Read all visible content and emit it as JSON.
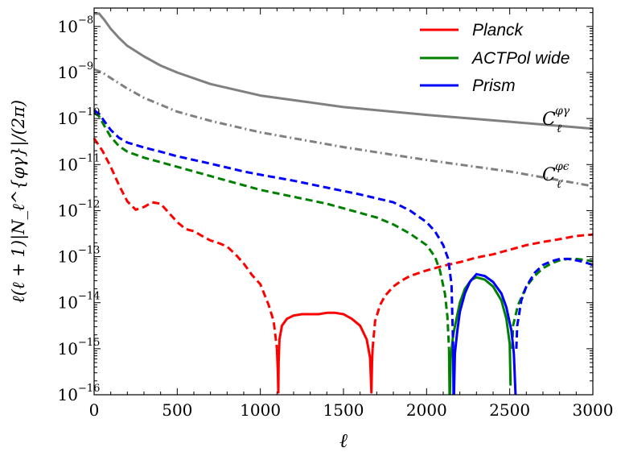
{
  "chart_data": {
    "type": "line",
    "yscale": "log",
    "xlabel": "ℓ",
    "ylabel": "ℓ(ℓ + 1)|N_ℓ^{φγ}|/(2π)",
    "xlim": [
      0,
      3000
    ],
    "ylim_exp": [
      -16,
      -7.6
    ],
    "xticks": [
      0,
      500,
      1000,
      1500,
      2000,
      2500,
      3000
    ],
    "xtick_labels": [
      "0",
      "500",
      "1000",
      "1500",
      "2000",
      "2500",
      "3000"
    ],
    "yticks_exp": [
      -16,
      -15,
      -14,
      -13,
      -12,
      -11,
      -10,
      -9,
      -8
    ],
    "ytick_labels": [
      "10",
      "10",
      "10",
      "10",
      "10",
      "10",
      "10",
      "10",
      "10"
    ],
    "ytick_exponents": [
      "−16",
      "−15",
      "−14",
      "−13",
      "−12",
      "−11",
      "−10",
      "−9",
      "−8"
    ],
    "legend": {
      "placement": "top-right",
      "entries": [
        {
          "label": "Planck",
          "color": "#ff0000"
        },
        {
          "label": "ACTPol wide",
          "color": "#008000"
        },
        {
          "label": "Prism",
          "color": "#0000ff"
        }
      ]
    },
    "annotations": [
      {
        "base": "C",
        "sub": "ℓ",
        "sup": "φγ",
        "series": "Cl_phi_gamma"
      },
      {
        "base": "C",
        "sub": "ℓ",
        "sup": "φϵ",
        "series": "Cl_phi_eps"
      }
    ],
    "series": [
      {
        "name": "Cl_phi_gamma",
        "color": "#808080",
        "style": "solid",
        "points": [
          [
            0,
            -7.72
          ],
          [
            30,
            -7.72
          ],
          [
            60,
            -7.85
          ],
          [
            100,
            -8.05
          ],
          [
            150,
            -8.25
          ],
          [
            200,
            -8.42
          ],
          [
            300,
            -8.65
          ],
          [
            400,
            -8.85
          ],
          [
            500,
            -9.0
          ],
          [
            700,
            -9.25
          ],
          [
            1000,
            -9.5
          ],
          [
            1500,
            -9.75
          ],
          [
            2000,
            -9.92
          ],
          [
            2500,
            -10.07
          ],
          [
            3000,
            -10.22
          ]
        ]
      },
      {
        "name": "Cl_phi_eps",
        "color": "#808080",
        "style": "dashdot",
        "points": [
          [
            0,
            -8.93
          ],
          [
            50,
            -9.0
          ],
          [
            100,
            -9.12
          ],
          [
            200,
            -9.35
          ],
          [
            300,
            -9.55
          ],
          [
            500,
            -9.85
          ],
          [
            700,
            -10.05
          ],
          [
            1000,
            -10.3
          ],
          [
            1500,
            -10.62
          ],
          [
            2000,
            -10.9
          ],
          [
            2500,
            -11.15
          ],
          [
            3000,
            -11.47
          ]
        ]
      },
      {
        "name": "Planck",
        "color": "#ff0000",
        "segments": [
          {
            "style": "dashed",
            "points": [
              [
                0,
                -10.43
              ],
              [
                50,
                -10.7
              ],
              [
                100,
                -11.05
              ],
              [
                150,
                -11.45
              ],
              [
                200,
                -11.8
              ],
              [
                250,
                -11.98
              ],
              [
                300,
                -11.92
              ],
              [
                350,
                -11.82
              ],
              [
                400,
                -11.85
              ],
              [
                450,
                -12.05
              ],
              [
                500,
                -12.25
              ],
              [
                550,
                -12.4
              ],
              [
                600,
                -12.45
              ],
              [
                650,
                -12.55
              ],
              [
                700,
                -12.65
              ],
              [
                730,
                -12.68
              ],
              [
                760,
                -12.72
              ],
              [
                800,
                -12.78
              ],
              [
                850,
                -12.95
              ],
              [
                900,
                -13.15
              ],
              [
                950,
                -13.4
              ],
              [
                1000,
                -13.6
              ],
              [
                1050,
                -14.05
              ],
              [
                1080,
                -14.4
              ],
              [
                1100,
                -15.0
              ]
            ]
          },
          {
            "style": "solid",
            "points": [
              [
                1100,
                -15.0
              ],
              [
                1105,
                -15.5
              ],
              [
                1108,
                -15.95
              ],
              [
                1110,
                -15.3
              ],
              [
                1115,
                -14.8
              ],
              [
                1130,
                -14.5
              ],
              [
                1160,
                -14.35
              ],
              [
                1200,
                -14.28
              ],
              [
                1250,
                -14.25
              ],
              [
                1300,
                -14.25
              ],
              [
                1350,
                -14.25
              ],
              [
                1400,
                -14.22
              ],
              [
                1450,
                -14.22
              ],
              [
                1500,
                -14.25
              ],
              [
                1550,
                -14.35
              ],
              [
                1600,
                -14.5
              ],
              [
                1640,
                -14.8
              ],
              [
                1660,
                -15.2
              ],
              [
                1668,
                -15.95
              ],
              [
                1672,
                -15.3
              ],
              [
                1675,
                -15.0
              ]
            ]
          },
          {
            "style": "dashed",
            "points": [
              [
                1675,
                -15.0
              ],
              [
                1690,
                -14.4
              ],
              [
                1720,
                -14.05
              ],
              [
                1750,
                -13.85
              ],
              [
                1800,
                -13.65
              ],
              [
                1850,
                -13.52
              ],
              [
                1900,
                -13.42
              ],
              [
                2000,
                -13.3
              ],
              [
                2100,
                -13.2
              ],
              [
                2200,
                -13.12
              ],
              [
                2300,
                -13.02
              ],
              [
                2400,
                -12.95
              ],
              [
                2500,
                -12.85
              ],
              [
                2600,
                -12.75
              ],
              [
                2700,
                -12.68
              ],
              [
                2800,
                -12.62
              ],
              [
                2900,
                -12.55
              ],
              [
                3000,
                -12.52
              ]
            ]
          }
        ]
      },
      {
        "name": "ACTPol wide",
        "color": "#008000",
        "segments": [
          {
            "style": "dashed",
            "points": [
              [
                0,
                -9.88
              ],
              [
                30,
                -9.95
              ],
              [
                60,
                -10.15
              ],
              [
                100,
                -10.4
              ],
              [
                150,
                -10.6
              ],
              [
                200,
                -10.72
              ],
              [
                300,
                -10.85
              ],
              [
                400,
                -10.95
              ],
              [
                500,
                -11.05
              ],
              [
                700,
                -11.25
              ],
              [
                900,
                -11.45
              ],
              [
                1000,
                -11.55
              ],
              [
                1200,
                -11.7
              ],
              [
                1400,
                -11.85
              ],
              [
                1600,
                -12.05
              ],
              [
                1700,
                -12.15
              ],
              [
                1800,
                -12.3
              ],
              [
                1900,
                -12.5
              ],
              [
                2000,
                -12.75
              ],
              [
                2050,
                -13.0
              ],
              [
                2080,
                -13.3
              ],
              [
                2110,
                -13.8
              ],
              [
                2125,
                -14.3
              ],
              [
                2135,
                -15.0
              ]
            ]
          },
          {
            "style": "solid",
            "points": [
              [
                2135,
                -15.0
              ],
              [
                2138,
                -16.0
              ]
            ]
          },
          {
            "style": "solid",
            "points": [
              [
                2140,
                -16.0
              ],
              [
                2145,
                -15.2
              ],
              [
                2160,
                -14.7
              ],
              [
                2180,
                -14.35
              ],
              [
                2200,
                -14.0
              ],
              [
                2230,
                -13.7
              ],
              [
                2270,
                -13.5
              ],
              [
                2300,
                -13.45
              ],
              [
                2350,
                -13.5
              ],
              [
                2400,
                -13.65
              ],
              [
                2450,
                -13.95
              ],
              [
                2480,
                -14.35
              ],
              [
                2500,
                -14.9
              ],
              [
                2505,
                -15.8
              ]
            ]
          },
          {
            "style": "dashed",
            "points": [
              [
                2515,
                -15.0
              ],
              [
                2520,
                -14.5
              ],
              [
                2550,
                -14.05
              ],
              [
                2600,
                -13.65
              ],
              [
                2650,
                -13.42
              ],
              [
                2700,
                -13.25
              ],
              [
                2750,
                -13.15
              ],
              [
                2800,
                -13.08
              ],
              [
                2850,
                -13.05
              ],
              [
                2900,
                -13.05
              ],
              [
                2950,
                -13.07
              ],
              [
                3000,
                -13.1
              ]
            ]
          }
        ]
      },
      {
        "name": "Prism",
        "color": "#0000ff",
        "segments": [
          {
            "style": "dashed",
            "points": [
              [
                0,
                -9.82
              ],
              [
                30,
                -9.9
              ],
              [
                60,
                -10.05
              ],
              [
                100,
                -10.25
              ],
              [
                150,
                -10.42
              ],
              [
                200,
                -10.52
              ],
              [
                300,
                -10.63
              ],
              [
                400,
                -10.72
              ],
              [
                500,
                -10.82
              ],
              [
                700,
                -10.98
              ],
              [
                900,
                -11.15
              ],
              [
                1000,
                -11.22
              ],
              [
                1200,
                -11.35
              ],
              [
                1400,
                -11.5
              ],
              [
                1600,
                -11.65
              ],
              [
                1800,
                -11.82
              ],
              [
                1900,
                -12.0
              ],
              [
                2000,
                -12.25
              ],
              [
                2050,
                -12.45
              ],
              [
                2100,
                -12.75
              ],
              [
                2130,
                -13.05
              ],
              [
                2150,
                -13.6
              ],
              [
                2160,
                -15.0
              ]
            ]
          },
          {
            "style": "solid",
            "points": [
              [
                2160,
                -15.0
              ],
              [
                2162,
                -16.0
              ]
            ]
          },
          {
            "style": "solid",
            "points": [
              [
                2165,
                -16.0
              ],
              [
                2170,
                -15.1
              ],
              [
                2185,
                -14.6
              ],
              [
                2200,
                -14.2
              ],
              [
                2230,
                -13.8
              ],
              [
                2260,
                -13.55
              ],
              [
                2300,
                -13.38
              ],
              [
                2350,
                -13.42
              ],
              [
                2400,
                -13.55
              ],
              [
                2450,
                -13.8
              ],
              [
                2480,
                -14.1
              ],
              [
                2510,
                -14.6
              ],
              [
                2525,
                -15.1
              ],
              [
                2535,
                -16.0
              ]
            ]
          },
          {
            "style": "dashed",
            "points": [
              [
                2540,
                -15.0
              ],
              [
                2545,
                -14.5
              ],
              [
                2570,
                -13.95
              ],
              [
                2600,
                -13.65
              ],
              [
                2650,
                -13.35
              ],
              [
                2700,
                -13.18
              ],
              [
                2750,
                -13.1
              ],
              [
                2800,
                -13.05
              ],
              [
                2850,
                -13.05
              ],
              [
                2900,
                -13.08
              ],
              [
                2950,
                -13.12
              ],
              [
                3000,
                -13.18
              ]
            ]
          }
        ]
      }
    ]
  }
}
